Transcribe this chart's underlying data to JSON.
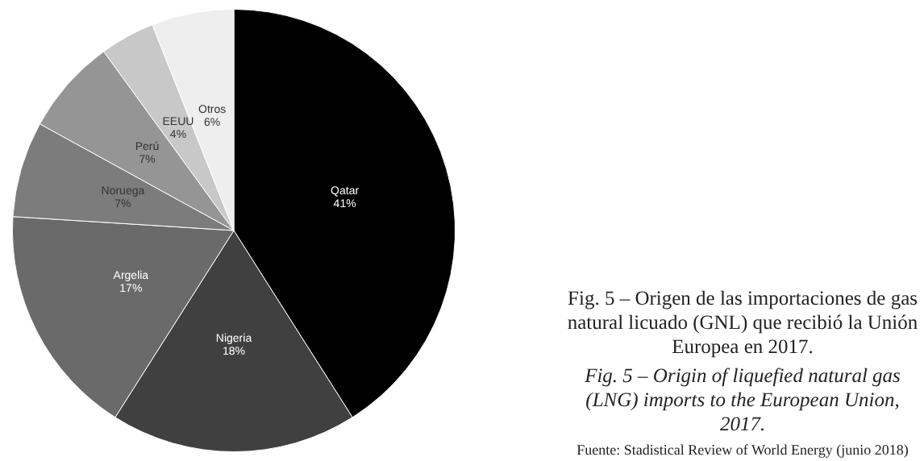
{
  "chart_data": {
    "type": "pie",
    "title": "Fig. 5 – Origen de las importaciones de gas natural licuado (GNL) que recibió la Unión Europea en 2017.",
    "subtitle": "Fig. 5 – Origin of liquefied natural gas (LNG) imports to the European Union, 2017.",
    "annotations": [
      "Fuente: Stadistical Review of World Energy (junio 2018)"
    ],
    "categories": [
      "Qatar",
      "Nigeria",
      "Argelia",
      "Noruega",
      "Perú",
      "EEUU",
      "Otros"
    ],
    "values": [
      41,
      18,
      17,
      7,
      7,
      4,
      6
    ],
    "value_labels": [
      "41%",
      "18%",
      "17%",
      "7%",
      "7%",
      "4%",
      "6%"
    ],
    "colors": [
      "#000000",
      "#404040",
      "#6a6a6a",
      "#7c7c7c",
      "#959595",
      "#c8c8c8",
      "#eeeeee"
    ],
    "legend": false
  }
}
